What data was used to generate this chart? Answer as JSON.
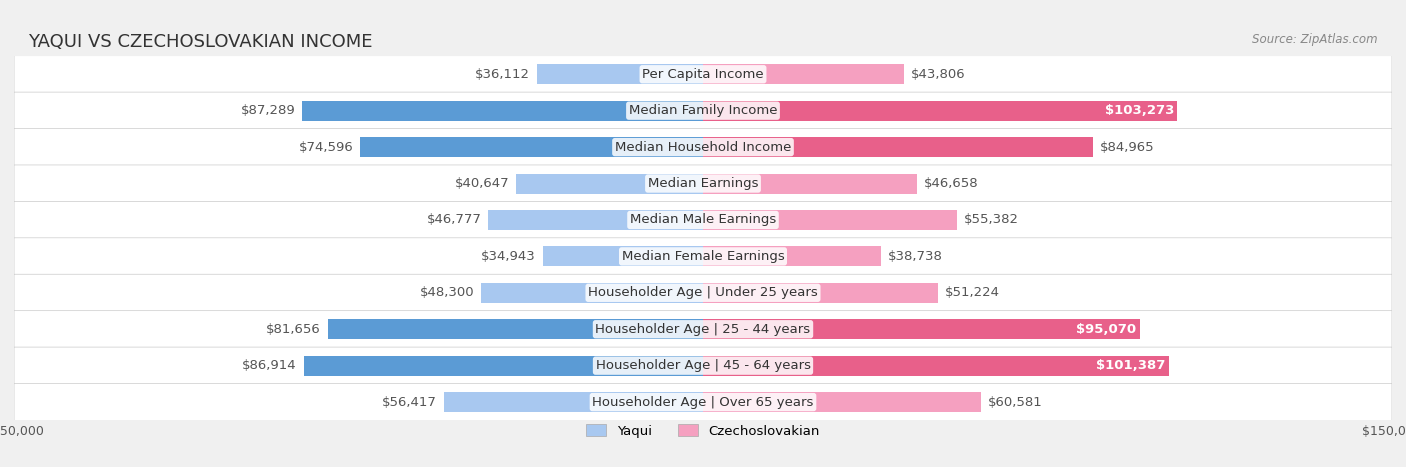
{
  "title": "YAQUI VS CZECHOSLOVAKIAN INCOME",
  "source": "Source: ZipAtlas.com",
  "categories": [
    "Per Capita Income",
    "Median Family Income",
    "Median Household Income",
    "Median Earnings",
    "Median Male Earnings",
    "Median Female Earnings",
    "Householder Age | Under 25 years",
    "Householder Age | 25 - 44 years",
    "Householder Age | 45 - 64 years",
    "Householder Age | Over 65 years"
  ],
  "yaqui_values": [
    36112,
    87289,
    74596,
    40647,
    46777,
    34943,
    48300,
    81656,
    86914,
    56417
  ],
  "czech_values": [
    43806,
    103273,
    84965,
    46658,
    55382,
    38738,
    51224,
    95070,
    101387,
    60581
  ],
  "yaqui_labels": [
    "$36,112",
    "$87,289",
    "$74,596",
    "$40,647",
    "$46,777",
    "$34,943",
    "$48,300",
    "$81,656",
    "$86,914",
    "$56,417"
  ],
  "czech_labels": [
    "$43,806",
    "$103,273",
    "$84,965",
    "$46,658",
    "$55,382",
    "$38,738",
    "$51,224",
    "$95,070",
    "$101,387",
    "$60,581"
  ],
  "czech_label_white": [
    false,
    true,
    false,
    false,
    false,
    false,
    false,
    true,
    true,
    false
  ],
  "yaqui_color_light": "#a8c8f0",
  "yaqui_color_dark": "#5b9bd5",
  "czech_color_light": "#f5a0c0",
  "czech_color_dark": "#e8608a",
  "max_value": 150000,
  "background_color": "#f0f0f0",
  "row_bg_color": "#ffffff",
  "label_fontsize": 9.5,
  "title_fontsize": 13,
  "legend_yaqui": "Yaqui",
  "legend_czech": "Czechoslovakian"
}
